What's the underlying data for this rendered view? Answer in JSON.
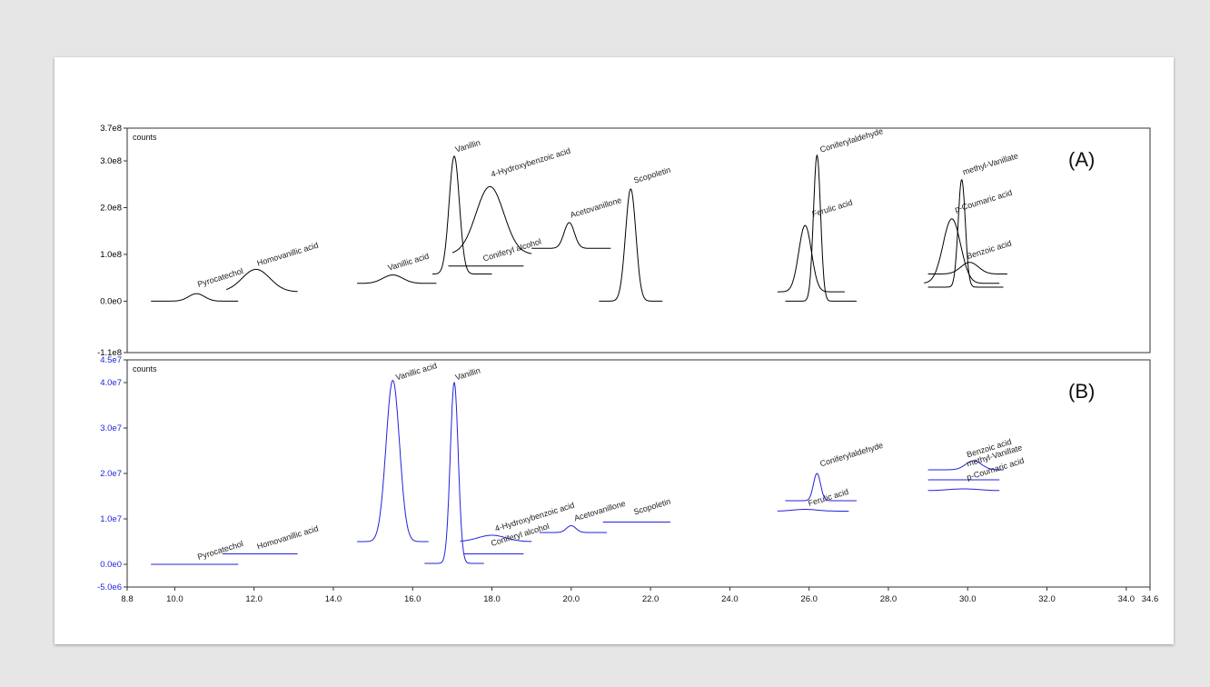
{
  "chart_data": [
    {
      "type": "line",
      "panel_label": "(A)",
      "ylabel": "counts",
      "color": "#000000",
      "ylim": [
        -110000000.0,
        370000000.0
      ],
      "xlim": [
        8.8,
        34.6
      ],
      "ytick_values": [
        -110000000.0,
        0,
        100000000.0,
        200000000.0,
        300000000.0,
        370000000.0
      ],
      "ytick_labels": [
        "-1.1e8",
        "0.0e0",
        "1.0e8",
        "2.0e8",
        "3.0e8",
        "3.7e8"
      ],
      "peaks": [
        {
          "name": "Pyrocatechol",
          "x0": 9.4,
          "x1": 11.6,
          "center": 10.55,
          "width": 0.2,
          "baseline": 0,
          "height": 16000000.0,
          "label_x": 10.6,
          "label_y": 30000000.0
        },
        {
          "name": "Homovanillic acid",
          "x0": 11.3,
          "x1": 13.1,
          "center": 12.05,
          "width": 0.35,
          "baseline": 20000000.0,
          "height": 48000000.0,
          "label_x": 12.1,
          "label_y": 75000000.0
        },
        {
          "name": "Vanillic acid",
          "x0": 14.6,
          "x1": 16.6,
          "center": 15.5,
          "width": 0.25,
          "baseline": 38000000.0,
          "height": 18000000.0,
          "label_x": 15.4,
          "label_y": 65000000.0
        },
        {
          "name": "Vanillin",
          "x0": 16.5,
          "x1": 18.0,
          "center": 17.05,
          "width": 0.13,
          "baseline": 58000000.0,
          "height": 252000000.0,
          "label_x": 17.1,
          "label_y": 318000000.0
        },
        {
          "name": "4-Hydroxybenzoic acid",
          "x0": 17.0,
          "x1": 19.0,
          "center": 17.95,
          "width": 0.35,
          "baseline": 100000000.0,
          "height": 145000000.0,
          "label_x": 18.0,
          "label_y": 265000000.0
        },
        {
          "name": "Coniferyl alcohol",
          "x0": 16.9,
          "x1": 18.8,
          "center": 17.8,
          "width": 0.4,
          "baseline": 75000000.0,
          "height": 0,
          "label_x": 17.8,
          "label_y": 85000000.0
        },
        {
          "name": "Acetovanillone",
          "x0": 19.0,
          "x1": 21.0,
          "center": 19.95,
          "width": 0.13,
          "baseline": 113000000.0,
          "height": 55000000.0,
          "label_x": 20.0,
          "label_y": 178000000.0
        },
        {
          "name": "Scopoletin",
          "x0": 20.7,
          "x1": 22.3,
          "center": 21.5,
          "width": 0.13,
          "baseline": 0,
          "height": 240000000.0,
          "label_x": 21.6,
          "label_y": 252000000.0
        },
        {
          "name": "Ferulic acid",
          "x0": 25.2,
          "x1": 26.9,
          "center": 25.9,
          "width": 0.16,
          "baseline": 20000000.0,
          "height": 142000000.0,
          "label_x": 26.1,
          "label_y": 180000000.0
        },
        {
          "name": "Coniferylaldehyde",
          "x0": 25.4,
          "x1": 27.2,
          "center": 26.2,
          "width": 0.09,
          "baseline": 0,
          "height": 312000000.0,
          "label_x": 26.3,
          "label_y": 318000000.0
        },
        {
          "name": "p-Coumaric acid",
          "x0": 28.9,
          "x1": 30.8,
          "center": 29.6,
          "width": 0.22,
          "baseline": 38000000.0,
          "height": 138000000.0,
          "label_x": 29.7,
          "label_y": 190000000.0
        },
        {
          "name": "methyl-Vanillate",
          "x0": 29.0,
          "x1": 30.9,
          "center": 29.85,
          "width": 0.09,
          "baseline": 30000000.0,
          "height": 230000000.0,
          "label_x": 29.9,
          "label_y": 270000000.0
        },
        {
          "name": "Benzoic acid",
          "x0": 29.0,
          "x1": 31.0,
          "center": 30.05,
          "width": 0.22,
          "baseline": 58000000.0,
          "height": 25000000.0,
          "label_x": 30.0,
          "label_y": 90000000.0
        }
      ]
    },
    {
      "type": "line",
      "panel_label": "(B)",
      "ylabel": "counts",
      "color": "#2222dd",
      "ylim": [
        -5000000.0,
        45000000.0
      ],
      "xlim": [
        8.8,
        34.6
      ],
      "ytick_values": [
        -5000000.0,
        0,
        10000000.0,
        20000000.0,
        30000000.0,
        40000000.0,
        45000000.0
      ],
      "ytick_labels": [
        "-5.0e6",
        "0.0e0",
        "1.0e7",
        "2.0e7",
        "3.0e7",
        "4.0e7",
        "4.5e7"
      ],
      "xtick_values": [
        8.8,
        10,
        12,
        14,
        16,
        18,
        20,
        22,
        24,
        26,
        28,
        30,
        32,
        34,
        34.6
      ],
      "xtick_labels": [
        "8.8",
        "10.0",
        "12.0",
        "14.0",
        "16.0",
        "18.0",
        "20.0",
        "22.0",
        "24.0",
        "26.0",
        "28.0",
        "30.0",
        "32.0",
        "34.0",
        "34.6"
      ],
      "peaks": [
        {
          "name": "Pyrocatechol",
          "x0": 9.4,
          "x1": 11.6,
          "center": 10.5,
          "width": 0.2,
          "baseline": 0,
          "height": 0,
          "label_x": 10.6,
          "label_y": 1000000.0
        },
        {
          "name": "Homovanillic acid",
          "x0": 11.2,
          "x1": 13.1,
          "center": 12.0,
          "width": 0.3,
          "baseline": 2300000.0,
          "height": 0,
          "label_x": 12.1,
          "label_y": 3300000.0
        },
        {
          "name": "Vanillic acid",
          "x0": 14.6,
          "x1": 16.4,
          "center": 15.5,
          "width": 0.17,
          "baseline": 5000000.0,
          "height": 35500000.0,
          "label_x": 15.6,
          "label_y": 40500000.0
        },
        {
          "name": "Vanillin",
          "x0": 16.3,
          "x1": 17.8,
          "center": 17.05,
          "width": 0.1,
          "baseline": 200000.0,
          "height": 39800000.0,
          "label_x": 17.1,
          "label_y": 40500000.0
        },
        {
          "name": "4-Hydroxybenzoic acid",
          "x0": 17.2,
          "x1": 19.0,
          "center": 18.0,
          "width": 0.35,
          "baseline": 5000000.0,
          "height": 1400000.0,
          "label_x": 18.1,
          "label_y": 7200000.0
        },
        {
          "name": "Coniferyl alcohol",
          "x0": 17.3,
          "x1": 18.8,
          "center": 18.0,
          "width": 0.3,
          "baseline": 2300000.0,
          "height": 0,
          "label_x": 18.0,
          "label_y": 4000000.0
        },
        {
          "name": "Acetovanillone",
          "x0": 19.2,
          "x1": 20.9,
          "center": 20.0,
          "width": 0.12,
          "baseline": 7000000.0,
          "height": 1500000.0,
          "label_x": 20.1,
          "label_y": 9500000.0
        },
        {
          "name": "Scopoletin",
          "x0": 20.8,
          "x1": 22.5,
          "center": 21.7,
          "width": 0.3,
          "baseline": 9300000.0,
          "height": 0,
          "label_x": 21.6,
          "label_y": 10900000.0
        },
        {
          "name": "Ferulic acid",
          "x0": 25.2,
          "x1": 27.0,
          "center": 25.9,
          "width": 0.3,
          "baseline": 11700000.0,
          "height": 400000.0,
          "label_x": 26.0,
          "label_y": 12800000.0
        },
        {
          "name": "Coniferylaldehyde",
          "x0": 25.4,
          "x1": 27.2,
          "center": 26.2,
          "width": 0.09,
          "baseline": 14000000.0,
          "height": 6000000.0,
          "label_x": 26.3,
          "label_y": 21500000.0
        },
        {
          "name": "Benzoic acid",
          "x0": 29.0,
          "x1": 30.9,
          "center": 30.15,
          "width": 0.2,
          "baseline": 20800000.0,
          "height": 2000000.0,
          "label_x": 30.0,
          "label_y": 23500000.0
        },
        {
          "name": "methyl-Vanillate",
          "x0": 29.0,
          "x1": 30.8,
          "center": 29.9,
          "width": 0.3,
          "baseline": 18600000.0,
          "height": 0,
          "label_x": 30.0,
          "label_y": 21500000.0
        },
        {
          "name": "p-Coumaric acid",
          "x0": 29.0,
          "x1": 30.8,
          "center": 29.9,
          "width": 0.4,
          "baseline": 16200000.0,
          "height": 400000.0,
          "label_x": 30.0,
          "label_y": 18500000.0
        }
      ]
    }
  ]
}
